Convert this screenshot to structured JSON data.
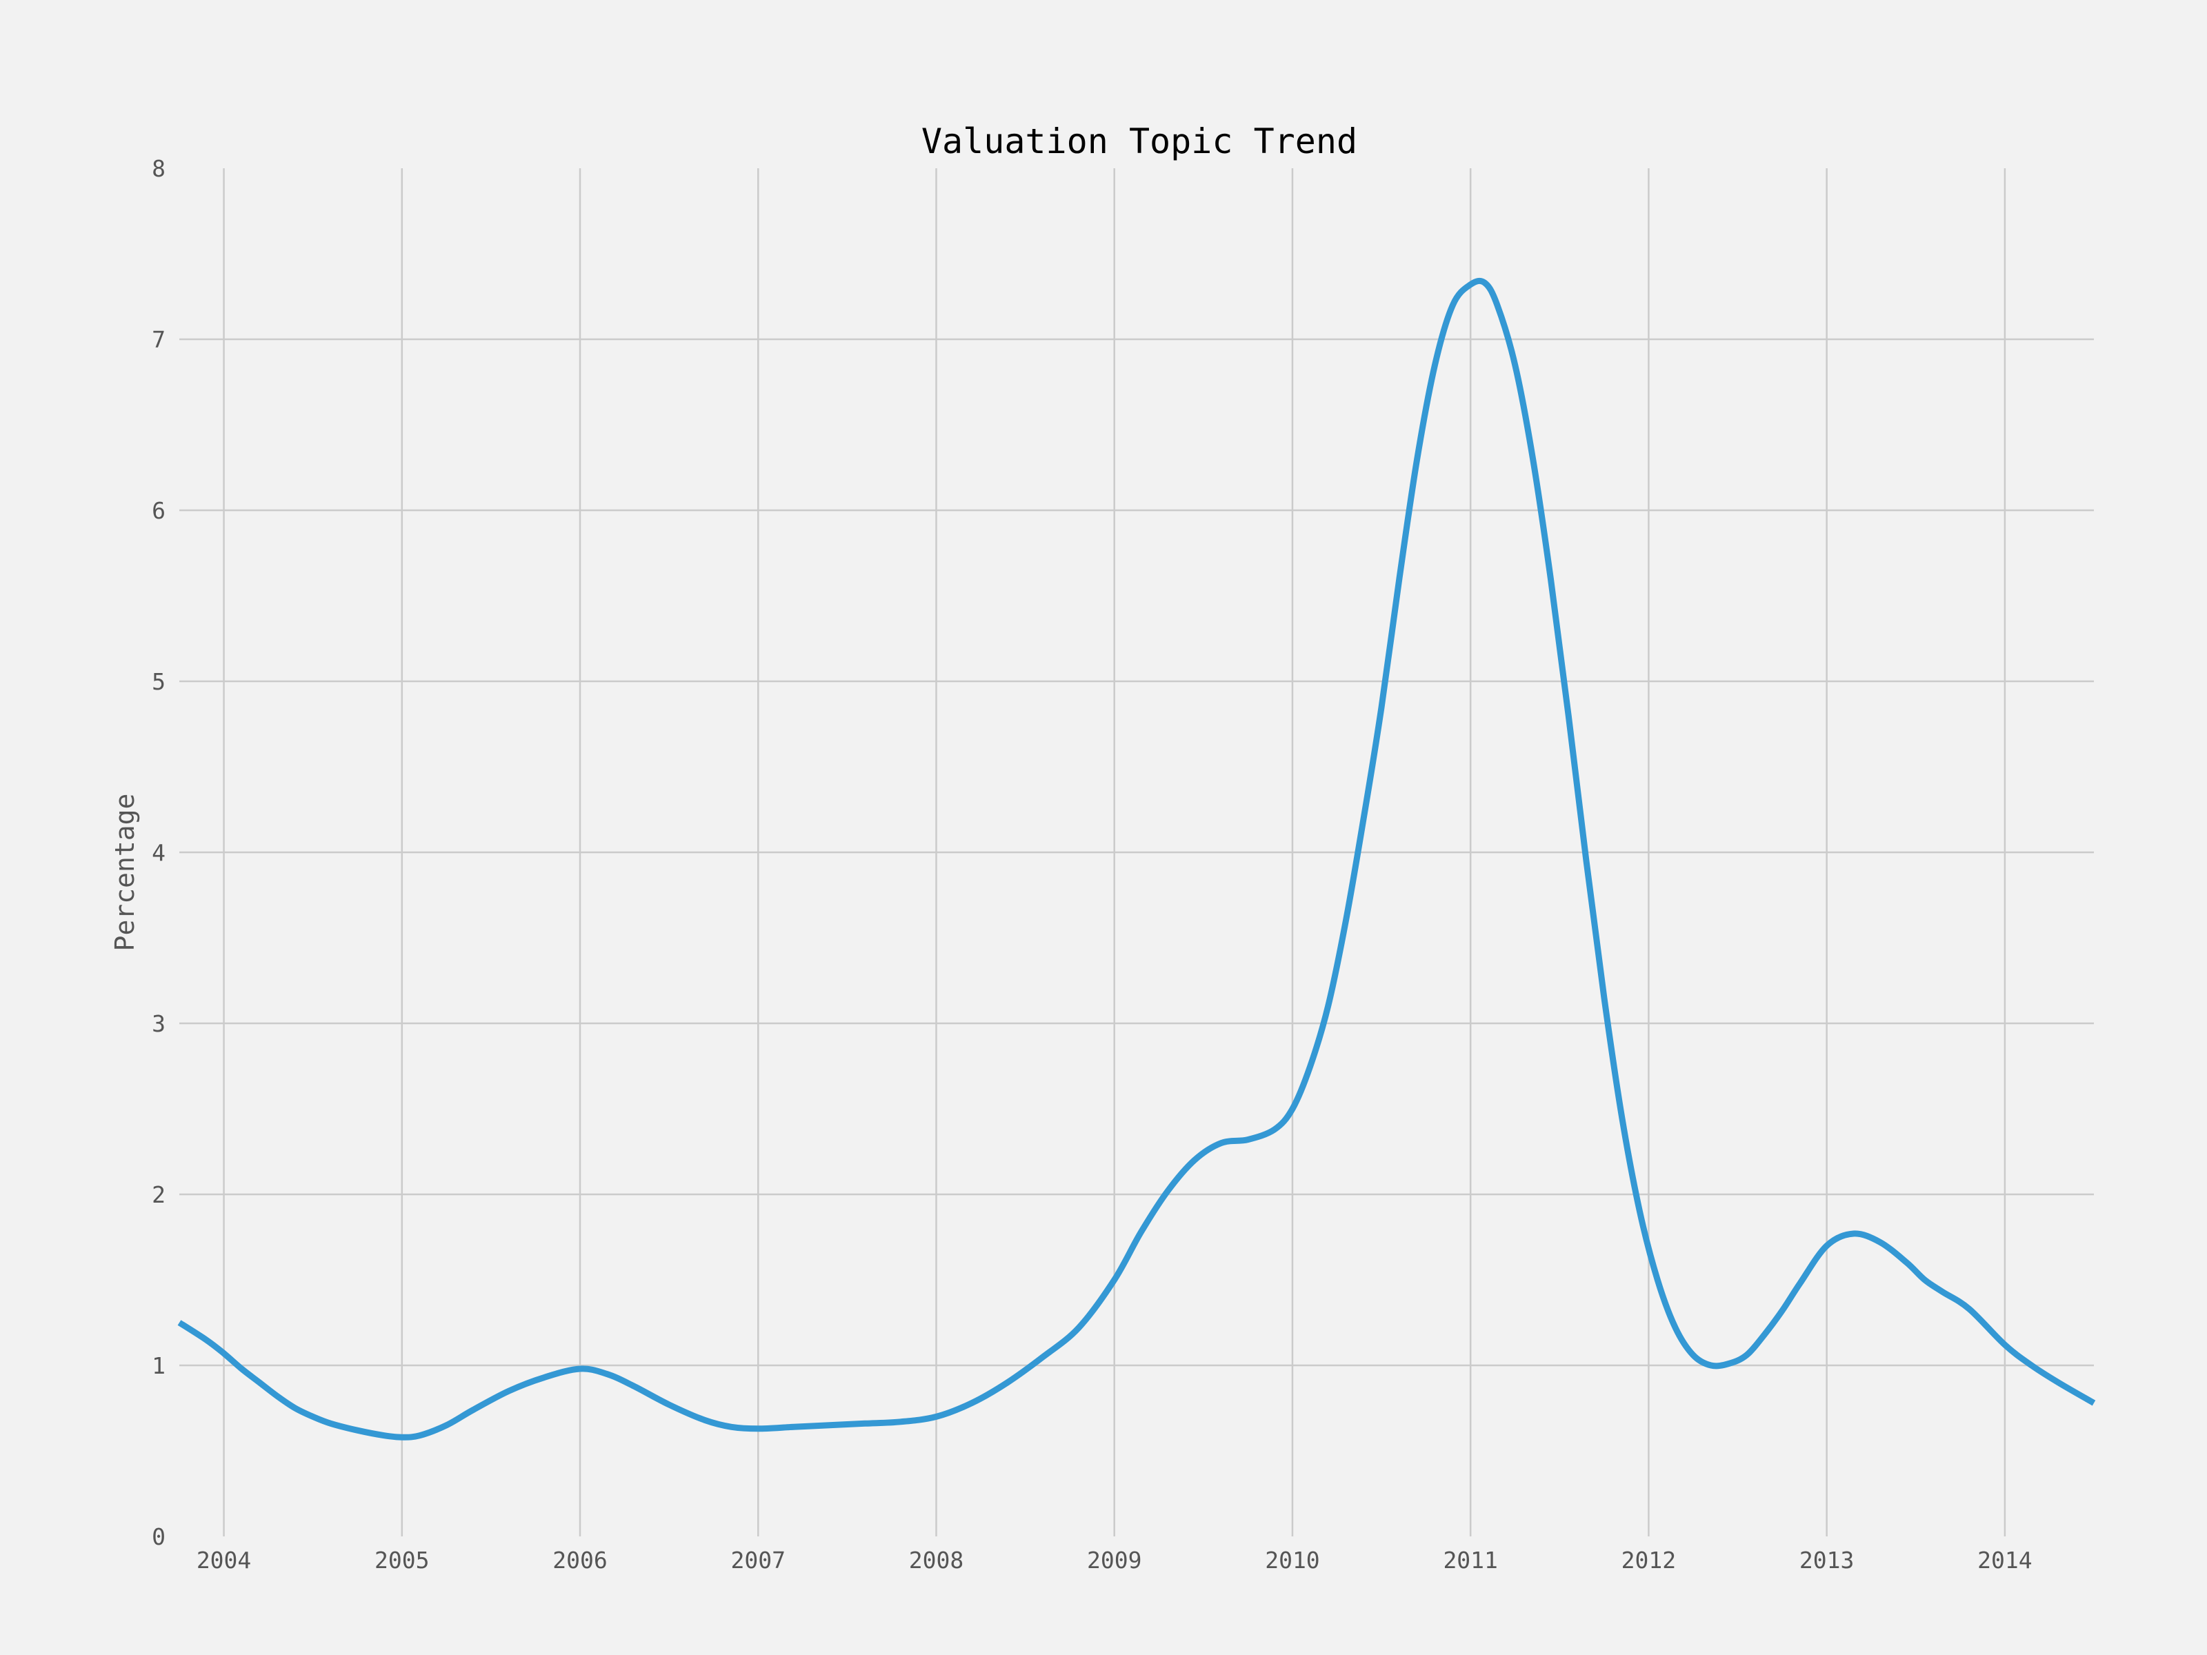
{
  "chart_data": {
    "type": "line",
    "title": "Valuation Topic Trend",
    "xlabel": "",
    "ylabel": "Percentage",
    "xlim": [
      2003.75,
      2014.5
    ],
    "ylim": [
      0,
      8
    ],
    "x_ticks": [
      2004,
      2005,
      2006,
      2007,
      2008,
      2009,
      2010,
      2011,
      2012,
      2013,
      2014
    ],
    "x_tick_labels": [
      "2004",
      "2005",
      "2006",
      "2007",
      "2008",
      "2009",
      "2010",
      "2011",
      "2012",
      "2013",
      "2014"
    ],
    "y_ticks": [
      0,
      1,
      2,
      3,
      4,
      5,
      6,
      7,
      8
    ],
    "y_tick_labels": [
      "0",
      "1",
      "2",
      "3",
      "4",
      "5",
      "6",
      "7",
      "8"
    ],
    "grid": true,
    "series": [
      {
        "color": "#3498d4",
        "x": [
          2003.75,
          2003.9,
          2004.0,
          2004.1,
          2004.2,
          2004.3,
          2004.4,
          2004.5,
          2004.6,
          2004.75,
          2004.9,
          2005.0,
          2005.1,
          2005.25,
          2005.4,
          2005.6,
          2005.8,
          2006.0,
          2006.15,
          2006.3,
          2006.5,
          2006.7,
          2006.85,
          2007.0,
          2007.2,
          2007.4,
          2007.6,
          2007.8,
          2008.0,
          2008.2,
          2008.4,
          2008.6,
          2008.8,
          2009.0,
          2009.15,
          2009.3,
          2009.45,
          2009.6,
          2009.75,
          2009.9,
          2010.0,
          2010.1,
          2010.2,
          2010.3,
          2010.4,
          2010.5,
          2010.6,
          2010.7,
          2010.8,
          2010.9,
          2011.0,
          2011.08,
          2011.15,
          2011.25,
          2011.35,
          2011.45,
          2011.55,
          2011.65,
          2011.75,
          2011.85,
          2011.95,
          2012.05,
          2012.15,
          2012.25,
          2012.35,
          2012.45,
          2012.55,
          2012.65,
          2012.75,
          2012.85,
          2013.0,
          2013.15,
          2013.3,
          2013.45,
          2013.55,
          2013.65,
          2013.8,
          2014.0,
          2014.15,
          2014.3,
          2014.5
        ],
        "y": [
          1.25,
          1.15,
          1.07,
          0.98,
          0.9,
          0.82,
          0.75,
          0.7,
          0.66,
          0.62,
          0.59,
          0.58,
          0.59,
          0.65,
          0.74,
          0.85,
          0.93,
          0.98,
          0.95,
          0.88,
          0.77,
          0.68,
          0.64,
          0.63,
          0.64,
          0.65,
          0.66,
          0.67,
          0.7,
          0.78,
          0.9,
          1.05,
          1.22,
          1.5,
          1.78,
          2.02,
          2.2,
          2.3,
          2.32,
          2.38,
          2.5,
          2.75,
          3.1,
          3.6,
          4.2,
          4.85,
          5.6,
          6.3,
          6.85,
          7.2,
          7.32,
          7.33,
          7.2,
          6.85,
          6.3,
          5.6,
          4.8,
          3.95,
          3.15,
          2.45,
          1.9,
          1.5,
          1.22,
          1.06,
          1.0,
          1.01,
          1.06,
          1.18,
          1.32,
          1.48,
          1.7,
          1.77,
          1.72,
          1.6,
          1.5,
          1.43,
          1.33,
          1.12,
          1.0,
          0.9,
          0.78
        ]
      }
    ]
  }
}
